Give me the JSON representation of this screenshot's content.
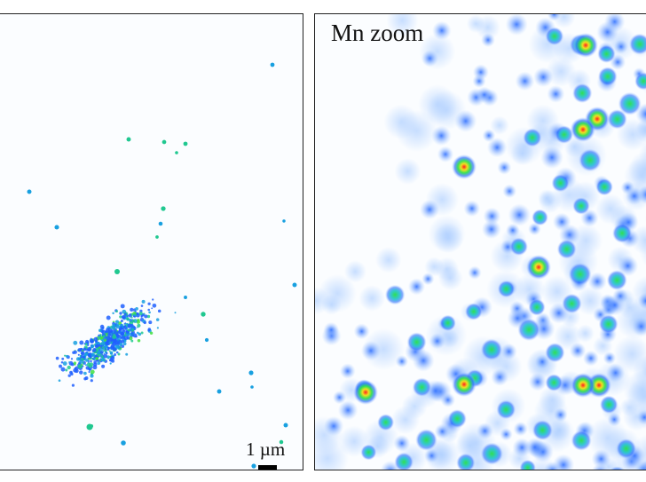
{
  "panels": {
    "left": {
      "scale_bar_label": "1 µm",
      "colormap": [
        "#2060ff",
        "#18a0e0",
        "#20c890",
        "#40e040",
        "#f0e020",
        "#ff2020"
      ]
    },
    "right": {
      "label": "Mn zoom",
      "colormap": [
        "#9cc4ff",
        "#3070ff",
        "#20c0d0",
        "#30e050",
        "#f0e020",
        "#ff2020"
      ]
    }
  }
}
